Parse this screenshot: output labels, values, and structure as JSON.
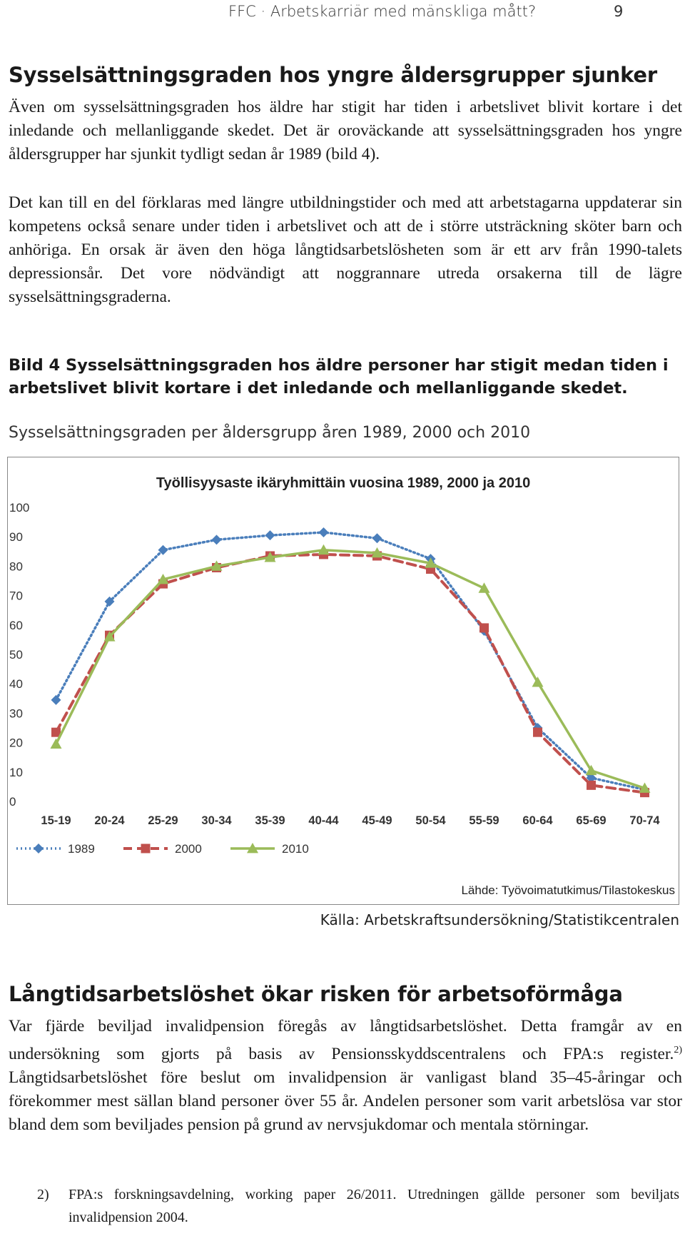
{
  "header": {
    "title": "FFC · Arbetskarriär med mänskliga mått?",
    "page_number": "9"
  },
  "section1": {
    "heading": "Sysselsättningsgraden hos yngre åldersgrupper sjunker",
    "para1": "Även om sysselsättningsgraden hos äldre har stigit har tiden i arbetslivet blivit kortare i det inledande och mellanliggande skedet. Det är oroväckande att sysselsättningsgraden hos yngre åldersgrupper har sjunkit tydligt sedan år 1989 (bild 4).",
    "para2": "Det kan till en del förklaras med längre utbildningstider och med att arbetstagarna uppdaterar sin kompetens också senare under tiden i arbetslivet och att de i större utsträckning sköter barn och anhöriga. En orsak är även den höga långtidsarbetslösheten som är ett arv från 1990-talets depressionsår. Det vore nödvändigt att noggrannare utreda orsakerna till de lägre sysselsättningsgraderna."
  },
  "figure": {
    "caption": "Bild 4 Sysselsättningsgraden hos äldre personer har stigit medan tiden i arbetslivet blivit kortare i det inledande och mellanliggande skedet.",
    "subtitle": "Sysselsättningsgraden per åldersgrupp åren 1989, 2000 och 2010",
    "source": "Källa: Arbetskraftsundersökning/Statistikcentralen"
  },
  "chart_data": {
    "type": "line",
    "title": "Työllisyysaste ikäryhmittäin vuosina 1989, 2000 ja 2010",
    "source_note": "Lähde: Työvoimatutkimus/Tilastokeskus",
    "categories": [
      "15-19",
      "20-24",
      "25-29",
      "30-34",
      "35-39",
      "40-44",
      "45-49",
      "50-54",
      "55-59",
      "60-64",
      "65-69",
      "70-74"
    ],
    "ylim": [
      0,
      100
    ],
    "yticks": [
      0,
      10,
      20,
      30,
      40,
      50,
      60,
      70,
      80,
      90,
      100
    ],
    "legend_position": "bottom-left",
    "grid": false,
    "series": [
      {
        "name": "1989",
        "color": "#4a7ebb",
        "line": "dotted",
        "marker": "diamond",
        "values": [
          34.5,
          68,
          85.5,
          89,
          90.5,
          91.5,
          89.5,
          82.5,
          58,
          25,
          8,
          4
        ]
      },
      {
        "name": "2000",
        "color": "#c0504d",
        "line": "dashed",
        "marker": "square",
        "values": [
          23.5,
          56.5,
          74,
          79.5,
          83.5,
          84,
          83.5,
          79,
          59,
          23.5,
          5.5,
          3
        ]
      },
      {
        "name": "2010",
        "color": "#9bbb59",
        "line": "solid",
        "marker": "triangle",
        "values": [
          19.5,
          56,
          75.5,
          80,
          83,
          85.5,
          84.5,
          81,
          72.5,
          40.5,
          10.5,
          4.5
        ]
      }
    ]
  },
  "section2": {
    "heading": "Långtidsarbetslöshet ökar risken för arbetsoförmåga",
    "para_before_ref": "Var fjärde beviljad invalidpension föregås av långtidsarbetslöshet. Detta framgår av en undersökning som gjorts på basis av Pensionsskyddscentralens och FPA:s register.",
    "ref_mark": "2)",
    "para_after_ref": " Långtidsarbetslöshet före beslut om invalidpension är vanligast bland 35–45-åringar och förekommer mest sällan bland personer över 55 år. Andelen personer som varit arbetslösa var stor bland dem som beviljades pension på grund av nervsjukdomar och mentala störningar."
  },
  "footnote": {
    "number": "2)",
    "text": "FPA:s forskningsavdelning, working paper 26/2011. Utredningen gällde personer som beviljats invalidpension 2004."
  }
}
